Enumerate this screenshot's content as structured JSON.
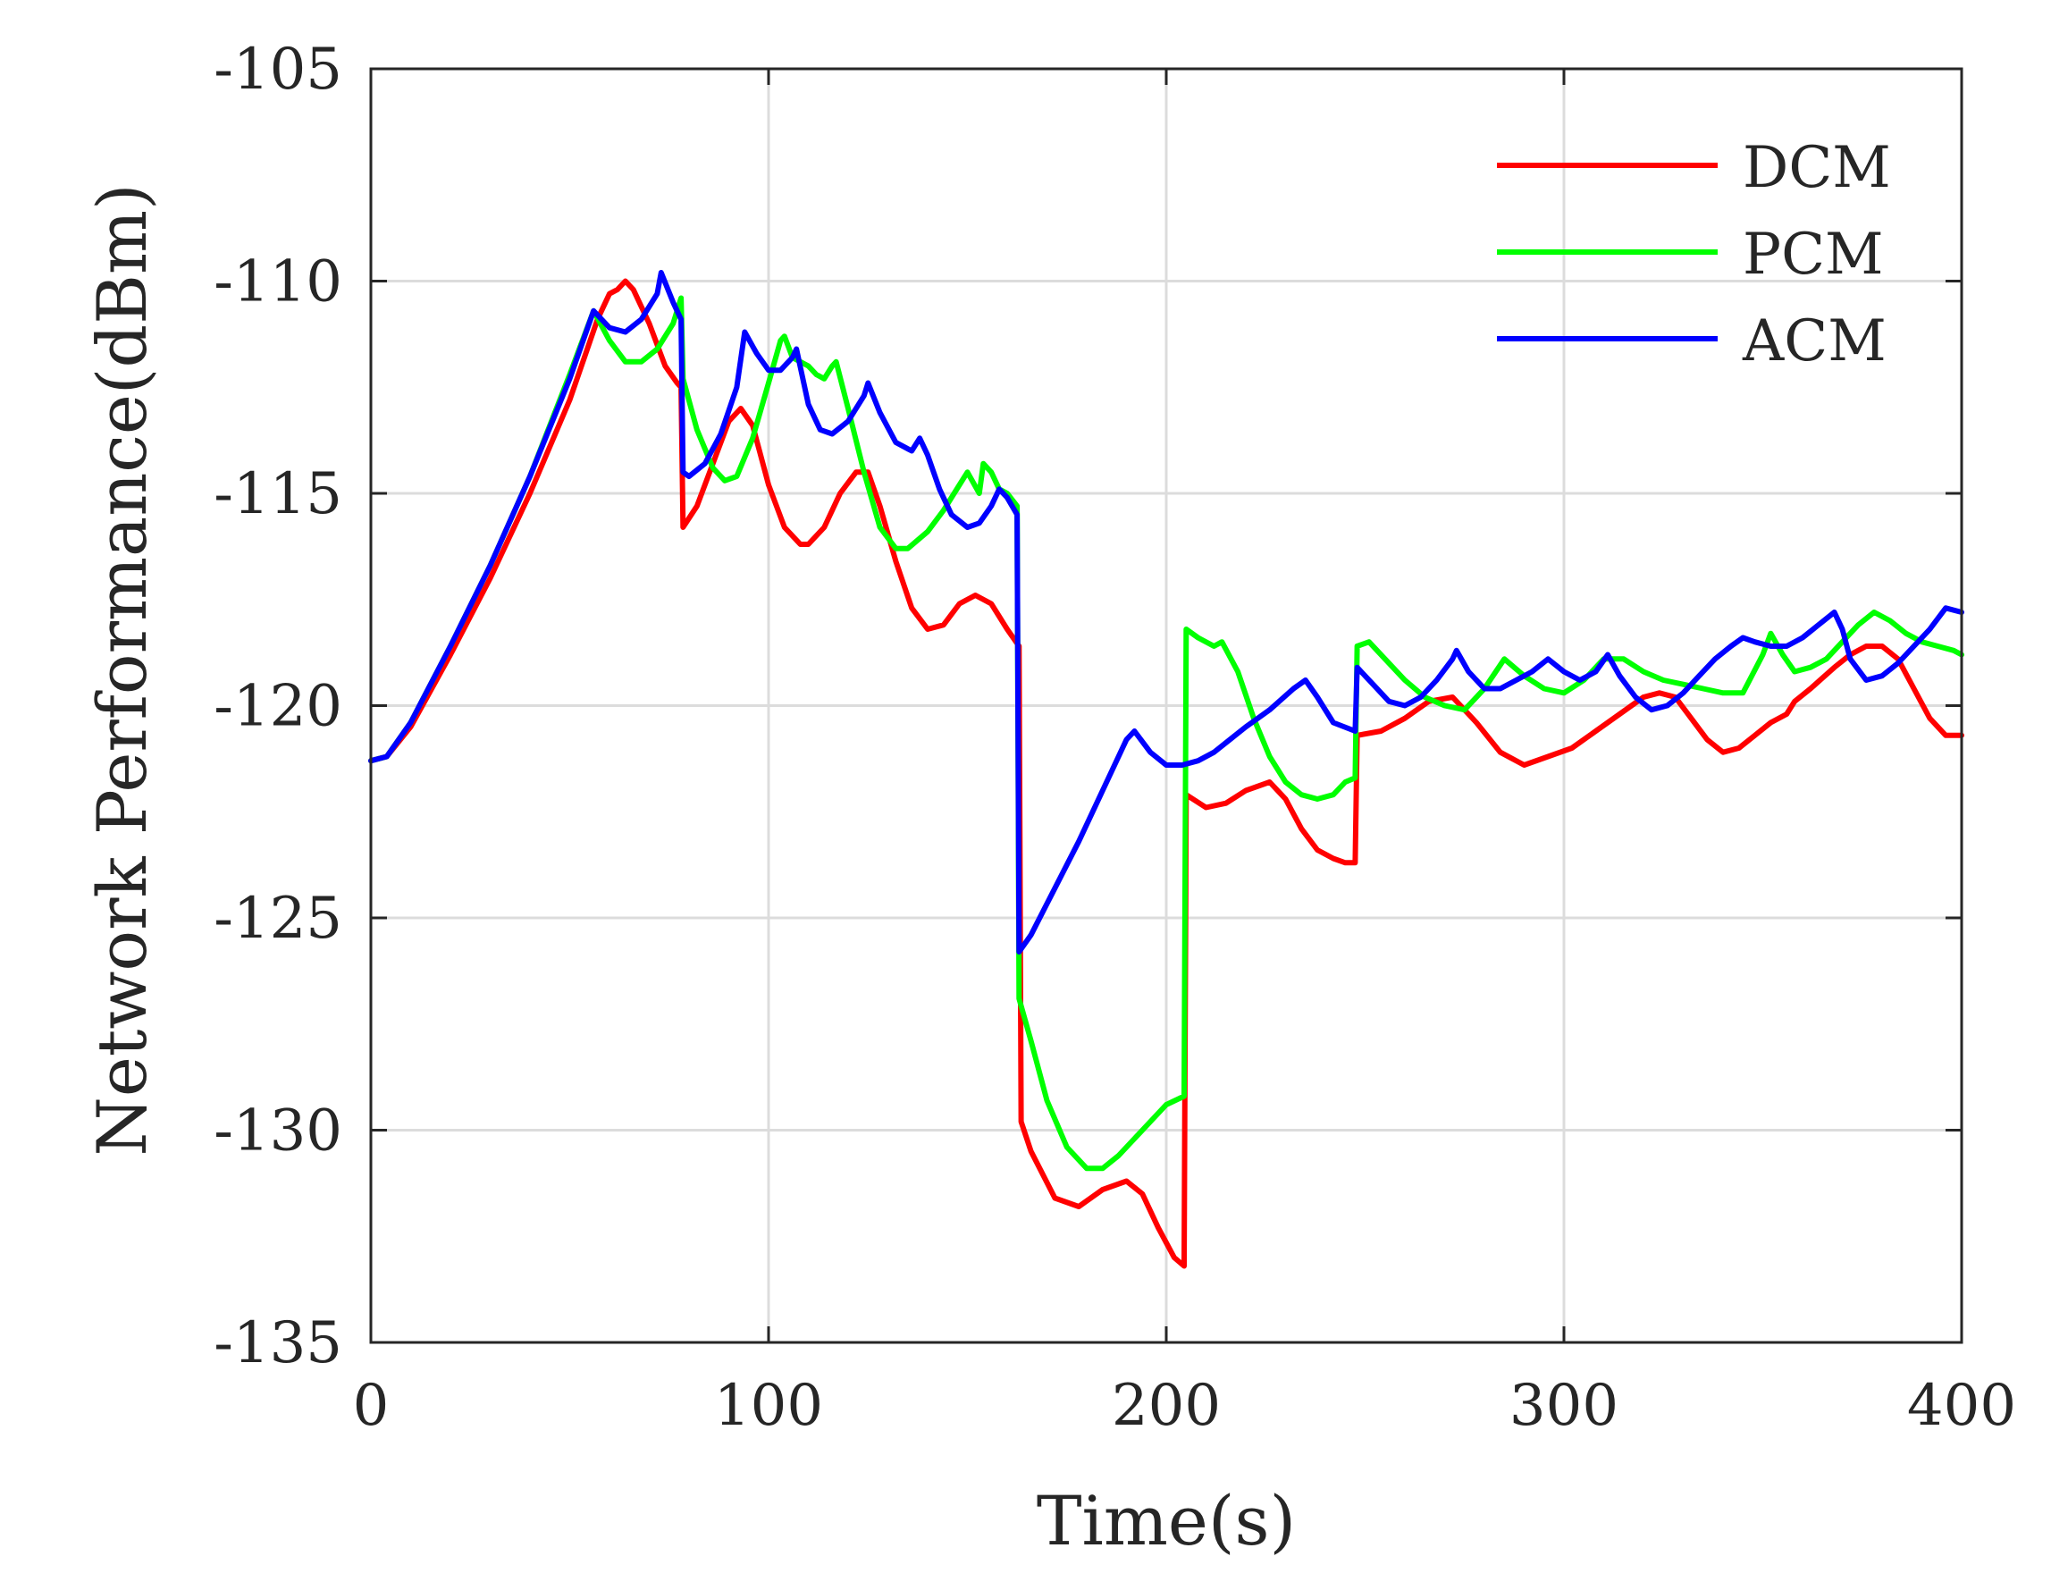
{
  "chart_data": {
    "type": "line",
    "title": "",
    "xlabel": "Time(s)",
    "ylabel": "Network Performance(dBm)",
    "xlim": [
      0,
      400
    ],
    "ylim": [
      -135,
      -105
    ],
    "xticks": [
      0,
      100,
      200,
      300,
      400
    ],
    "yticks": [
      -105,
      -110,
      -115,
      -120,
      -125,
      -130,
      -135
    ],
    "xtick_labels": [
      "0",
      "100",
      "200",
      "300",
      "400"
    ],
    "ytick_labels": [
      "-105",
      "-110",
      "-115",
      "-120",
      "-125",
      "-130",
      "-135"
    ],
    "grid": true,
    "legend_position": "top-right",
    "series": [
      {
        "name": "DCM",
        "color": "#ff0000",
        "x": [
          0,
          4,
          10,
          20,
          30,
          40,
          50,
          57,
          60,
          62,
          64,
          66,
          70,
          74,
          77,
          78,
          78.5,
          82,
          86,
          90,
          93,
          96,
          100,
          104,
          108,
          110,
          114,
          118,
          122,
          125,
          128,
          132,
          136,
          140,
          144,
          148,
          152,
          156,
          160,
          163,
          163.5,
          166,
          172,
          178,
          184,
          190,
          194,
          198,
          202,
          204.5,
          205,
          210,
          215,
          220,
          226,
          230,
          234,
          238,
          242,
          245,
          247.5,
          248,
          254,
          260,
          266,
          272,
          278,
          284,
          290,
          296,
          302,
          308,
          314,
          320,
          324,
          328,
          332,
          336,
          340,
          344,
          348,
          352,
          356,
          358,
          362,
          368,
          372,
          376,
          380,
          384,
          388,
          392,
          396,
          400
        ],
        "y": [
          -121.3,
          -121.2,
          -120.5,
          -118.8,
          -117,
          -115,
          -112.8,
          -110.9,
          -110.3,
          -110.2,
          -110,
          -110.2,
          -111,
          -112,
          -112.4,
          -112.5,
          -115.8,
          -115.3,
          -114.3,
          -113.3,
          -113,
          -113.4,
          -114.8,
          -115.8,
          -116.2,
          -116.2,
          -115.8,
          -115,
          -114.5,
          -114.5,
          -115.3,
          -116.6,
          -117.7,
          -118.2,
          -118.1,
          -117.6,
          -117.4,
          -117.6,
          -118.2,
          -118.6,
          -129.8,
          -130.5,
          -131.6,
          -131.8,
          -131.4,
          -131.2,
          -131.5,
          -132.3,
          -133,
          -133.2,
          -122.1,
          -122.4,
          -122.3,
          -122,
          -121.8,
          -122.2,
          -122.9,
          -123.4,
          -123.6,
          -123.7,
          -123.7,
          -120.7,
          -120.6,
          -120.3,
          -119.9,
          -119.8,
          -120.4,
          -121.1,
          -121.4,
          -121.2,
          -121,
          -120.6,
          -120.2,
          -119.8,
          -119.7,
          -119.8,
          -120.3,
          -120.8,
          -121.1,
          -121,
          -120.7,
          -120.4,
          -120.2,
          -119.9,
          -119.6,
          -119.1,
          -118.8,
          -118.6,
          -118.6,
          -118.9,
          -119.6,
          -120.3,
          -120.7,
          -120.7
        ]
      },
      {
        "name": "PCM",
        "color": "#00ff00",
        "x": [
          0,
          4,
          10,
          20,
          30,
          40,
          50,
          56,
          60,
          64,
          68,
          72,
          76,
          78,
          78.5,
          82,
          86,
          89,
          92,
          96,
          100,
          103,
          104,
          106,
          108,
          110,
          112,
          114,
          116,
          117,
          120,
          124,
          128,
          132,
          135,
          140,
          144,
          148,
          150,
          153,
          154,
          156,
          158,
          160,
          162.5,
          163,
          166,
          170,
          175,
          180,
          184,
          188,
          192,
          196,
          200,
          204.5,
          205,
          208,
          212,
          214,
          218,
          222,
          226,
          230,
          234,
          238,
          242,
          245,
          247.5,
          248,
          251,
          255,
          260,
          265,
          270,
          275,
          280,
          285,
          290,
          295,
          300,
          305,
          310,
          315,
          320,
          325,
          330,
          335,
          340,
          345,
          350,
          352,
          355,
          358,
          362,
          366,
          370,
          374,
          378,
          382,
          386,
          390,
          394,
          398,
          400
        ],
        "y": [
          -121.3,
          -121.2,
          -120.4,
          -118.6,
          -116.7,
          -114.6,
          -112.2,
          -110.7,
          -111.4,
          -111.9,
          -111.9,
          -111.6,
          -111,
          -110.4,
          -112.3,
          -113.5,
          -114.4,
          -114.7,
          -114.6,
          -113.7,
          -112.4,
          -111.4,
          -111.3,
          -111.8,
          -111.9,
          -112,
          -112.2,
          -112.3,
          -112,
          -111.9,
          -113,
          -114.5,
          -115.8,
          -116.3,
          -116.3,
          -115.9,
          -115.4,
          -114.8,
          -114.5,
          -115,
          -114.3,
          -114.5,
          -114.9,
          -115,
          -115.3,
          -126.9,
          -127.9,
          -129.3,
          -130.4,
          -130.9,
          -130.9,
          -130.6,
          -130.2,
          -129.8,
          -129.4,
          -129.2,
          -118.2,
          -118.4,
          -118.6,
          -118.5,
          -119.2,
          -120.3,
          -121.2,
          -121.8,
          -122.1,
          -122.2,
          -122.1,
          -121.8,
          -121.7,
          -118.6,
          -118.5,
          -118.9,
          -119.4,
          -119.8,
          -120,
          -120.1,
          -119.6,
          -118.9,
          -119.3,
          -119.6,
          -119.7,
          -119.4,
          -118.9,
          -118.9,
          -119.2,
          -119.4,
          -119.5,
          -119.6,
          -119.7,
          -119.7,
          -118.8,
          -118.3,
          -118.8,
          -119.2,
          -119.1,
          -118.9,
          -118.5,
          -118.1,
          -117.8,
          -118,
          -118.3,
          -118.5,
          -118.6,
          -118.7,
          -118.8
        ]
      },
      {
        "name": "ACM",
        "color": "#0000ff",
        "x": [
          0,
          4,
          10,
          20,
          30,
          40,
          50,
          56,
          60,
          64,
          68,
          72,
          73,
          76,
          78,
          78.5,
          80,
          84,
          88,
          92,
          94,
          97,
          100,
          103,
          106,
          107,
          110,
          113,
          116,
          120,
          124,
          125,
          128,
          132,
          136,
          138,
          140,
          143,
          146,
          150,
          153,
          156,
          158,
          160,
          162.5,
          163,
          166,
          172,
          178,
          184,
          190,
          192,
          196,
          200,
          204,
          208,
          212,
          216,
          220,
          226,
          232,
          235,
          238,
          242,
          247.5,
          248,
          252,
          256,
          260,
          264,
          268,
          272,
          273,
          276,
          280,
          284,
          288,
          292,
          296,
          300,
          304,
          308,
          311,
          314,
          318,
          322,
          326,
          330,
          334,
          338,
          342,
          345,
          348,
          352,
          356,
          360,
          364,
          368,
          370,
          372,
          376,
          380,
          384,
          388,
          392,
          396,
          400
        ],
        "y": [
          -121.3,
          -121.2,
          -120.4,
          -118.6,
          -116.7,
          -114.6,
          -112.3,
          -110.7,
          -111.1,
          -111.2,
          -110.9,
          -110.3,
          -109.8,
          -110.5,
          -110.9,
          -114.5,
          -114.6,
          -114.3,
          -113.6,
          -112.5,
          -111.2,
          -111.7,
          -112.1,
          -112.1,
          -111.8,
          -111.6,
          -112.9,
          -113.5,
          -113.6,
          -113.3,
          -112.7,
          -112.4,
          -113.1,
          -113.8,
          -114,
          -113.7,
          -114.1,
          -114.9,
          -115.5,
          -115.8,
          -115.7,
          -115.3,
          -114.9,
          -115.1,
          -115.5,
          -125.8,
          -125.4,
          -124.3,
          -123.2,
          -122,
          -120.8,
          -120.6,
          -121.1,
          -121.4,
          -121.4,
          -121.3,
          -121.1,
          -120.8,
          -120.5,
          -120.1,
          -119.6,
          -119.4,
          -119.8,
          -120.4,
          -120.6,
          -119.1,
          -119.5,
          -119.9,
          -120,
          -119.8,
          -119.4,
          -118.9,
          -118.7,
          -119.2,
          -119.6,
          -119.6,
          -119.4,
          -119.2,
          -118.9,
          -119.2,
          -119.4,
          -119.2,
          -118.8,
          -119.3,
          -119.8,
          -120.1,
          -120,
          -119.7,
          -119.3,
          -118.9,
          -118.6,
          -118.4,
          -118.5,
          -118.6,
          -118.6,
          -118.4,
          -118.1,
          -117.8,
          -118.2,
          -118.9,
          -119.4,
          -119.3,
          -119,
          -118.6,
          -118.2,
          -117.7,
          -117.8
        ]
      }
    ]
  }
}
